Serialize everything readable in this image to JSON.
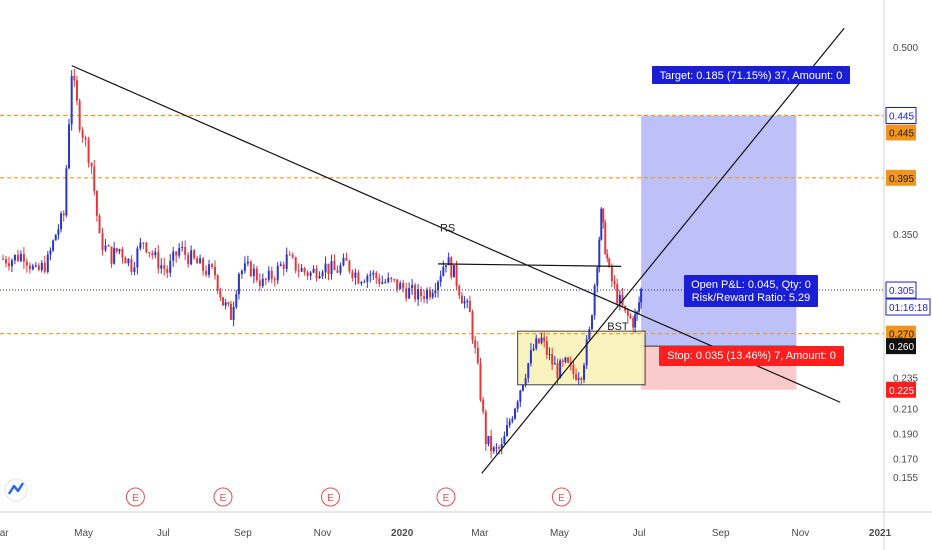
{
  "chart_data": {
    "type": "candlestick",
    "title": "",
    "xlabel": "",
    "ylabel": "",
    "grid": false,
    "colors": {
      "up": "#2a35c9",
      "down": "#e0393e",
      "level": "#f0961e",
      "target_fill": "#b7baf6",
      "stop_fill": "#f7c4c4",
      "box_fill": "#faf0b4",
      "label_blue": "#1a1fd6",
      "label_red": "#ff1e1e"
    },
    "x_ticks": [
      "Mar",
      "May",
      "Jul",
      "Sep",
      "Nov",
      "2020",
      "Mar",
      "May",
      "Jul",
      "Sep",
      "Nov",
      "2021"
    ],
    "x_ticks_bold": [
      "2020",
      "2021"
    ],
    "y_ticks": [
      "0.500",
      "0.445",
      "0.395",
      "0.350",
      "0.305",
      "0.270",
      "0.260",
      "0.235",
      "0.225",
      "0.210",
      "0.190",
      "0.170",
      "0.155"
    ],
    "ylim": [
      0.143,
      0.52
    ],
    "x_span_months": [
      0,
      22.2
    ],
    "earnings_months": [
      3.4,
      5.6,
      8.3,
      11.2,
      14.1
    ],
    "earnings_label": "E",
    "price_tags": [
      {
        "text": "0.445",
        "value": 0.445,
        "style": "blue-outline"
      },
      {
        "text": "0.445",
        "value": 0.445,
        "style": "orange-fill",
        "offset": 1
      },
      {
        "text": "0.395",
        "value": 0.395,
        "style": "orange-fill"
      },
      {
        "text": "0.305",
        "value": 0.305,
        "style": "blue-outline"
      },
      {
        "text": "01:16:18",
        "value": 0.305,
        "style": "blue-outline",
        "offset": 1
      },
      {
        "text": "0.270",
        "value": 0.27,
        "style": "orange-fill"
      },
      {
        "text": "0.260",
        "value": 0.26,
        "style": "black-fill"
      },
      {
        "text": "0.225",
        "value": 0.225,
        "style": "red-fill"
      }
    ],
    "horizontal_levels": [
      0.445,
      0.395,
      0.27
    ],
    "current_price_line": 0.305,
    "annotations": {
      "rs": "RS",
      "bst": "BST",
      "target": "Target: 0.185 (71.15%) 37, Amount: 0",
      "pnl_line1": "Open P&L: 0.045, Qty: 0",
      "pnl_line2": "Risk/Reward Ratio: 5.29",
      "stop": "Stop: 0.035 (13.46%) 7, Amount: 0"
    },
    "position": {
      "entry": 0.26,
      "target": 0.445,
      "stop": 0.225,
      "start_month": 16.1,
      "end_month": 20.0
    },
    "support_box": {
      "top": 0.272,
      "bottom": 0.229,
      "start_month": 13.0,
      "end_month": 16.2
    },
    "trend_lines": [
      {
        "name": "down-trendline",
        "from": [
          1.8,
          0.485
        ],
        "to": [
          21.1,
          0.215
        ]
      },
      {
        "name": "up-trendline",
        "from": [
          12.1,
          0.158
        ],
        "to": [
          21.2,
          0.515
        ]
      },
      {
        "name": "rs-neckline",
        "from": [
          11.0,
          0.326
        ],
        "to": [
          15.6,
          0.324
        ]
      }
    ],
    "series": [
      {
        "name": "price",
        "points": [
          [
            0.0,
            0.33
          ],
          [
            0.3,
            0.33
          ],
          [
            0.6,
            0.334
          ],
          [
            0.9,
            0.318
          ],
          [
            1.2,
            0.328
          ],
          [
            1.4,
            0.35
          ],
          [
            1.6,
            0.365
          ],
          [
            1.8,
            0.48
          ],
          [
            2.0,
            0.44
          ],
          [
            2.3,
            0.405
          ],
          [
            2.5,
            0.345
          ],
          [
            2.8,
            0.332
          ],
          [
            3.0,
            0.338
          ],
          [
            3.3,
            0.325
          ],
          [
            3.6,
            0.345
          ],
          [
            3.9,
            0.33
          ],
          [
            4.2,
            0.32
          ],
          [
            4.5,
            0.338
          ],
          [
            4.8,
            0.33
          ],
          [
            5.1,
            0.322
          ],
          [
            5.4,
            0.318
          ],
          [
            5.6,
            0.295
          ],
          [
            5.8,
            0.285
          ],
          [
            6.0,
            0.32
          ],
          [
            6.3,
            0.322
          ],
          [
            6.6,
            0.31
          ],
          [
            6.9,
            0.318
          ],
          [
            7.2,
            0.33
          ],
          [
            7.5,
            0.322
          ],
          [
            7.8,
            0.318
          ],
          [
            8.1,
            0.325
          ],
          [
            8.4,
            0.32
          ],
          [
            8.7,
            0.326
          ],
          [
            9.0,
            0.316
          ],
          [
            9.3,
            0.318
          ],
          [
            9.6,
            0.312
          ],
          [
            9.9,
            0.31
          ],
          [
            10.2,
            0.305
          ],
          [
            10.5,
            0.3
          ],
          [
            10.8,
            0.305
          ],
          [
            11.0,
            0.315
          ],
          [
            11.2,
            0.33
          ],
          [
            11.4,
            0.318
          ],
          [
            11.6,
            0.3
          ],
          [
            11.8,
            0.285
          ],
          [
            12.0,
            0.24
          ],
          [
            12.2,
            0.185
          ],
          [
            12.4,
            0.175
          ],
          [
            12.6,
            0.178
          ],
          [
            12.8,
            0.2
          ],
          [
            13.0,
            0.22
          ],
          [
            13.2,
            0.24
          ],
          [
            13.4,
            0.258
          ],
          [
            13.6,
            0.265
          ],
          [
            13.8,
            0.25
          ],
          [
            14.0,
            0.24
          ],
          [
            14.2,
            0.245
          ],
          [
            14.4,
            0.238
          ],
          [
            14.6,
            0.24
          ],
          [
            14.8,
            0.27
          ],
          [
            15.0,
            0.33
          ],
          [
            15.1,
            0.365
          ],
          [
            15.2,
            0.34
          ],
          [
            15.3,
            0.318
          ],
          [
            15.5,
            0.3
          ],
          [
            15.7,
            0.285
          ],
          [
            15.9,
            0.28
          ],
          [
            16.0,
            0.285
          ],
          [
            16.1,
            0.305
          ]
        ]
      }
    ]
  }
}
